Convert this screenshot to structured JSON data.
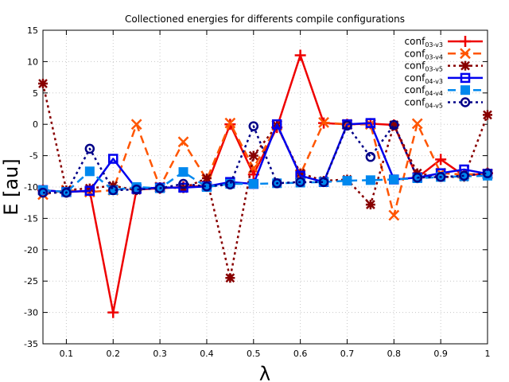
{
  "chart_data": {
    "type": "line",
    "title": "Collectioned energies for differents compile configurations",
    "xlabel": "λ",
    "ylabel": "E [au]",
    "xlim": [
      0.05,
      1.0
    ],
    "ylim": [
      -35,
      15
    ],
    "xticks": [
      0.1,
      0.2,
      0.3,
      0.4,
      0.5,
      0.6,
      0.7,
      0.8,
      0.9,
      1.0
    ],
    "xtick_labels": [
      "0.1",
      "0.2",
      "0.3",
      "0.4",
      "0.5",
      "0.6",
      "0.7",
      "0.8",
      "0.9",
      "1"
    ],
    "yticks": [
      -35,
      -30,
      -25,
      -20,
      -15,
      -10,
      -5,
      0,
      5,
      10,
      15
    ],
    "ytick_labels": [
      "-35",
      "-30",
      "-25",
      "-20",
      "-15",
      "-10",
      "-5",
      "0",
      "5",
      "10",
      "15"
    ],
    "grid": true,
    "legend_position": "top-right",
    "x": [
      0.05,
      0.1,
      0.15,
      0.2,
      0.25,
      0.3,
      0.35,
      0.4,
      0.45,
      0.5,
      0.55,
      0.6,
      0.65,
      0.7,
      0.75,
      0.8,
      0.85,
      0.9,
      0.95,
      1.0
    ],
    "series": [
      {
        "name": "conf03-v3",
        "label_main": "conf",
        "label_sub": "03-v3",
        "color": "#ee0000",
        "dash": "solid",
        "marker": "plus",
        "values": [
          -10.5,
          -10.8,
          -10.6,
          -30.0,
          -10.4,
          -10.2,
          -10.0,
          -9.8,
          0.0,
          -8.0,
          -0.5,
          11.0,
          0.2,
          0.0,
          0.1,
          -0.1,
          -8.5,
          -5.6,
          -8.2,
          -7.8
        ]
      },
      {
        "name": "conf03-v4",
        "label_main": "conf",
        "label_sub": "03-v4",
        "color": "#ff5500",
        "dash": "dashed",
        "marker": "x",
        "values": [
          -11.2,
          -10.5,
          -10.8,
          -10.5,
          0.0,
          -10.0,
          -2.8,
          -8.8,
          0.2,
          -7.0,
          -0.2,
          -8.0,
          0.3,
          0.0,
          0.0,
          -14.5,
          0.1,
          -7.8,
          -8.0,
          -7.9
        ]
      },
      {
        "name": "conf03-v5",
        "label_main": "conf",
        "label_sub": "03-v5",
        "color": "#880000",
        "dash": "dotted",
        "marker": "star",
        "values": [
          6.5,
          -10.5,
          -10.2,
          -9.8,
          -10.5,
          -10.0,
          -10.2,
          -8.6,
          -24.5,
          -5.0,
          -0.2,
          -7.8,
          -9.0,
          -8.8,
          -12.8,
          -0.1,
          -7.8,
          -8.4,
          -8.4,
          1.5
        ]
      },
      {
        "name": "conf04-v3",
        "label_main": "conf",
        "label_sub": "04-v3",
        "color": "#0000ee",
        "dash": "solid",
        "marker": "open-square",
        "values": [
          -10.5,
          -10.8,
          -10.6,
          -5.5,
          -10.3,
          -10.1,
          -10.1,
          -9.9,
          -9.2,
          -9.5,
          0.0,
          -8.2,
          -9.2,
          0.0,
          0.2,
          -8.8,
          -8.5,
          -7.8,
          -7.2,
          -7.9
        ]
      },
      {
        "name": "conf04-v4",
        "label_main": "conf",
        "label_sub": "04-v4",
        "color": "#0088ee",
        "dash": "dashed",
        "marker": "filled-square",
        "values": [
          -10.5,
          -10.8,
          -7.5,
          -10.5,
          -10.0,
          -10.2,
          -7.6,
          -10.0,
          -9.5,
          -9.5,
          -9.4,
          -9.3,
          -9.2,
          -9.0,
          -8.9,
          -8.8,
          -8.6,
          -8.4,
          -8.3,
          -8.2
        ]
      },
      {
        "name": "conf04-v5",
        "label_main": "conf",
        "label_sub": "04-v5",
        "color": "#000088",
        "dash": "dotted",
        "marker": "open-circle",
        "values": [
          -10.9,
          -10.9,
          -3.9,
          -10.5,
          -10.4,
          -10.2,
          -9.5,
          -9.9,
          -9.6,
          -0.3,
          -9.4,
          -9.2,
          -9.2,
          -0.2,
          -5.2,
          -0.1,
          -8.5,
          -8.4,
          -8.2,
          -7.8
        ]
      }
    ]
  }
}
